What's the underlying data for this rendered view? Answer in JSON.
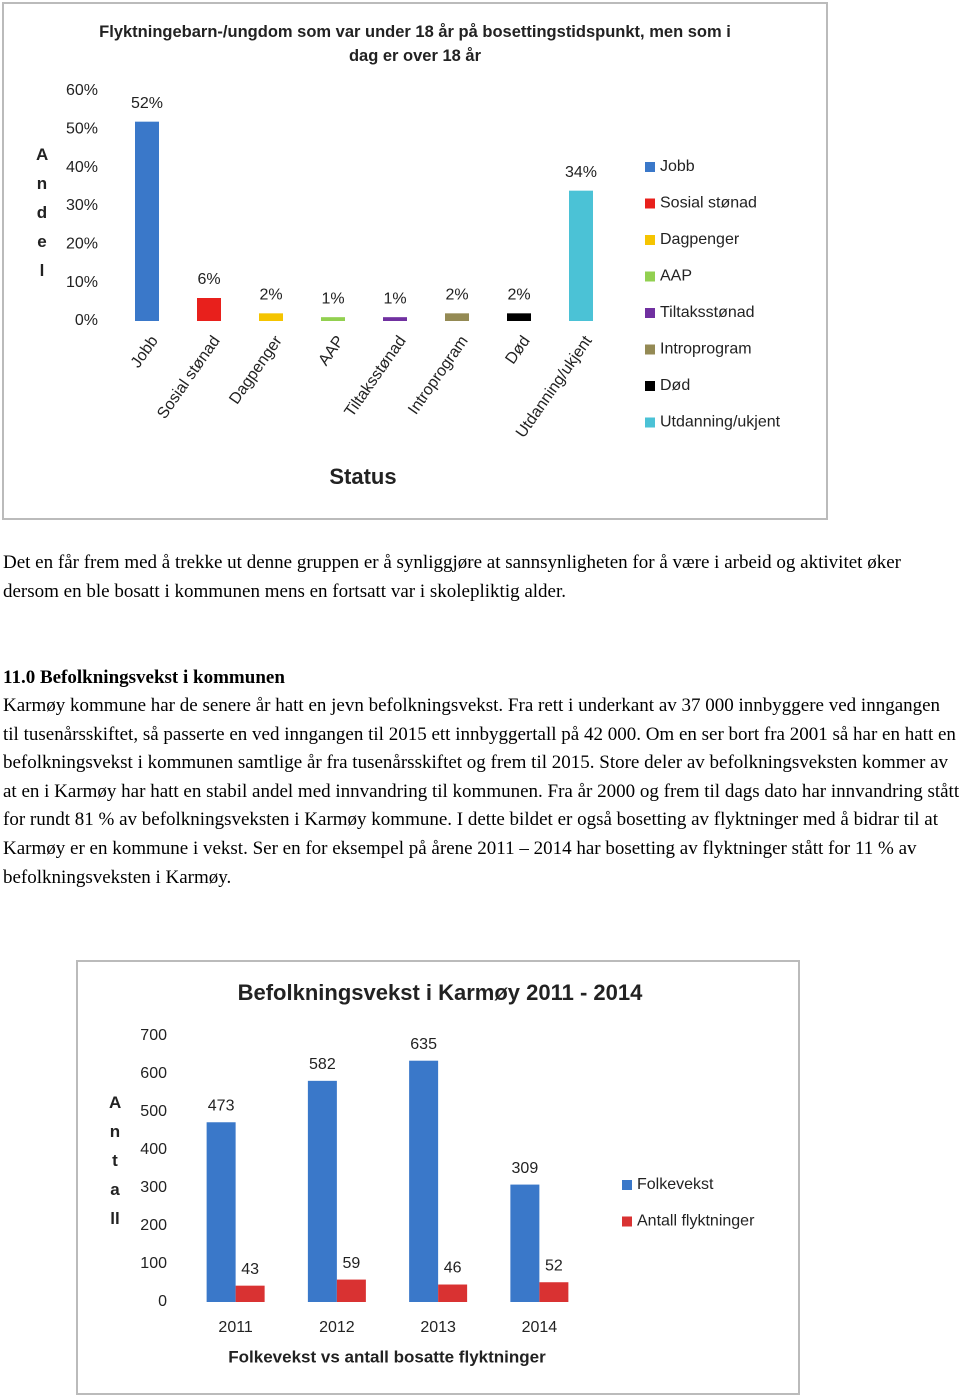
{
  "chart_data": [
    {
      "type": "bar",
      "title": "Flyktningebarn-/ungdom som var under 18 år på bosettingstidspunkt, men som i dag er over 18 år",
      "ylabel": "Andel",
      "xlabel": "Status",
      "categories": [
        "Jobb",
        "Sosial stønad",
        "Dagpenger",
        "AAP",
        "Tiltaksstønad",
        "Introprogram",
        "Død",
        "Utdanning/ukjent"
      ],
      "values": [
        52,
        6,
        2,
        1,
        1,
        2,
        2,
        34
      ],
      "value_labels": [
        "52%",
        "6%",
        "2%",
        "1%",
        "1%",
        "2%",
        "2%",
        "34%"
      ],
      "colors": [
        "#3a78c9",
        "#e8201c",
        "#f5c400",
        "#92d050",
        "#7030a0",
        "#948a54",
        "#000000",
        "#4bc2d6"
      ],
      "ylim": [
        0,
        60
      ],
      "yticks": [
        {
          "value": 0,
          "label": "0%"
        },
        {
          "value": 10,
          "label": "10%"
        },
        {
          "value": 20,
          "label": "20%"
        },
        {
          "value": 30,
          "label": "30%"
        },
        {
          "value": 40,
          "label": "40%"
        },
        {
          "value": 50,
          "label": "50%"
        },
        {
          "value": 60,
          "label": "60%"
        }
      ],
      "legend": "right"
    },
    {
      "type": "bar",
      "title": "Befolkningsvekst i Karmøy 2011 - 2014",
      "ylabel": "Antall",
      "xlabel": "Folkevekst vs antall bosatte flyktninger",
      "categories": [
        "2011",
        "2012",
        "2013",
        "2014"
      ],
      "series": [
        {
          "name": "Folkevekst",
          "color": "#3a78c9",
          "values": [
            473,
            582,
            635,
            309
          ]
        },
        {
          "name": "Antall flyktninger",
          "color": "#d93232",
          "values": [
            43,
            59,
            46,
            52
          ]
        }
      ],
      "ylim": [
        0,
        700
      ],
      "yticks": [
        0,
        100,
        200,
        300,
        400,
        500,
        600,
        700
      ],
      "legend": "right"
    }
  ],
  "document": {
    "paragraph_1": "Det en får frem med å trekke ut denne gruppen er å synliggjøre at sannsynligheten for å være i arbeid og aktivitet øker dersom en ble bosatt i kommunen mens en fortsatt var i skolepliktig alder.",
    "heading": "11.0 Befolkningsvekst i kommunen",
    "paragraph_2": "Karmøy kommune har de senere år hatt en jevn befolkningsvekst. Fra rett i underkant av 37 000 innbyggere ved inngangen til tusenårsskiftet, så passerte en ved inngangen til 2015 ett innbyggertall på 42 000. Om en ser bort fra 2001 så har en hatt en befolkningsvekst i kommunen samtlige år fra tusenårsskiftet og frem til 2015.  Store deler av befolkningsveksten kommer av at en i Karmøy har hatt en stabil andel med innvandring til kommunen. Fra år 2000 og frem til dags dato har innvandring stått for rundt 81 % av befolkningsveksten i Karmøy kommune. I dette bildet er også bosetting av flyktninger med å bidrar til at Karmøy er en kommune i vekst. Ser en for eksempel på årene 2011 – 2014 har bosetting av flyktninger stått for 11 % av befolkningsveksten i Karmøy."
  }
}
